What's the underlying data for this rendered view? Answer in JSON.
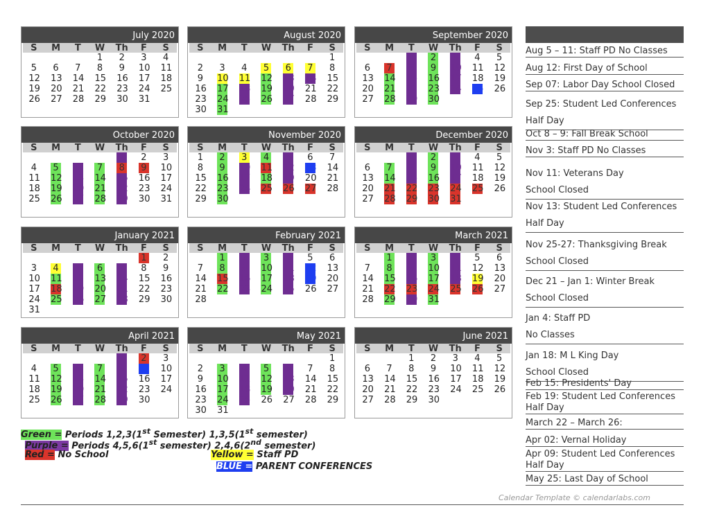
{
  "weekday_labels": [
    "S",
    "M",
    "T",
    "W",
    "Th",
    "F",
    "S"
  ],
  "months": [
    {
      "title": "July 2020",
      "start": 3,
      "days": 31,
      "marks": {}
    },
    {
      "title": "August 2020",
      "start": 6,
      "days": 31,
      "marks": {
        "5": "yellow",
        "6": "yellow",
        "7": "yellow",
        "10": "yellow",
        "11": "yellow",
        "12": "green",
        "13": "purple",
        "14": "purple",
        "17": "green",
        "18": "purple",
        "19": "green",
        "20": "purple",
        "24": "green",
        "25": "purple",
        "26": "green",
        "27": "purple",
        "31": "green"
      }
    },
    {
      "title": "September 2020",
      "start": 2,
      "days": 30,
      "marks": {
        "1": "purple",
        "2": "green",
        "3": "purple",
        "7": "red",
        "8": "purple",
        "9": "green",
        "10": "purple",
        "14": "green",
        "15": "purple",
        "16": "green",
        "17": "purple",
        "21": "green",
        "22": "purple",
        "23": "green",
        "24": "purple",
        "25": "blue",
        "28": "green",
        "29": "purple",
        "30": "green"
      }
    },
    {
      "title": "October 2020",
      "start": 4,
      "days": 31,
      "marks": {
        "1": "purple",
        "5": "green",
        "6": "purple",
        "7": "green",
        "8": "red",
        "9": "red",
        "12": "green",
        "13": "purple",
        "14": "green",
        "15": "purple",
        "19": "green",
        "20": "purple",
        "21": "green",
        "22": "purple",
        "26": "green",
        "27": "purple",
        "28": "green",
        "29": "purple"
      }
    },
    {
      "title": "November 2020",
      "start": 0,
      "days": 30,
      "marks": {
        "2": "green",
        "3": "yellow",
        "4": "green",
        "5": "purple",
        "9": "green",
        "10": "purple",
        "11": "red",
        "12": "purple",
        "13": "blue",
        "16": "green",
        "17": "purple",
        "18": "green",
        "19": "purple",
        "23": "green",
        "24": "purple",
        "25": "red",
        "26": "red",
        "27": "red",
        "30": "green"
      }
    },
    {
      "title": "December 2020",
      "start": 2,
      "days": 31,
      "marks": {
        "1": "purple",
        "2": "green",
        "3": "purple",
        "7": "green",
        "8": "purple",
        "9": "green",
        "10": "purple",
        "14": "green",
        "15": "purple",
        "16": "green",
        "17": "purple",
        "21": "red",
        "22": "red",
        "23": "red",
        "24": "red",
        "25": "red",
        "28": "red",
        "29": "red",
        "30": "red",
        "31": "red"
      }
    },
    {
      "title": "January 2021",
      "start": 5,
      "days": 31,
      "marks": {
        "1": "red",
        "4": "yellow",
        "5": "purple",
        "6": "green",
        "7": "purple",
        "11": "green",
        "12": "purple",
        "13": "green",
        "14": "purple",
        "18": "red",
        "19": "purple",
        "20": "green",
        "21": "purple",
        "25": "green",
        "26": "purple",
        "27": "green",
        "28": "purple"
      }
    },
    {
      "title": "February 2021",
      "start": 1,
      "days": 28,
      "marks": {
        "1": "green",
        "2": "purple",
        "3": "green",
        "4": "purple",
        "8": "green",
        "9": "purple",
        "10": "green",
        "11": "purple",
        "12": "blue",
        "15": "red",
        "16": "purple",
        "17": "green",
        "18": "purple",
        "19": "blue",
        "22": "green",
        "23": "purple",
        "24": "green",
        "25": "purple"
      }
    },
    {
      "title": "March 2021",
      "start": 1,
      "days": 31,
      "marks": {
        "1": "green",
        "2": "purple",
        "3": "green",
        "4": "purple",
        "8": "green",
        "9": "purple",
        "10": "green",
        "11": "purple",
        "15": "green",
        "16": "purple",
        "17": "green",
        "18": "purple",
        "19": "yellow",
        "22": "red",
        "23": "red",
        "24": "red",
        "25": "red",
        "26": "red",
        "29": "green",
        "30": "purple",
        "31": "green"
      }
    },
    {
      "title": "April 2021",
      "start": 4,
      "days": 30,
      "marks": {
        "1": "purple",
        "2": "red",
        "5": "green",
        "6": "purple",
        "7": "green",
        "8": "purple",
        "9": "blue",
        "12": "green",
        "13": "purple",
        "14": "green",
        "15": "purple",
        "19": "green",
        "20": "purple",
        "21": "green",
        "22": "purple",
        "26": "green",
        "27": "purple",
        "28": "green",
        "29": "purple"
      }
    },
    {
      "title": "May 2021",
      "start": 6,
      "days": 31,
      "marks": {
        "3": "green",
        "4": "purple",
        "5": "green",
        "6": "purple",
        "10": "green",
        "11": "purple",
        "12": "green",
        "13": "purple",
        "17": "green",
        "18": "purple",
        "19": "green",
        "20": "purple",
        "24": "green",
        "25": "purple"
      }
    },
    {
      "title": "June 2021",
      "start": 2,
      "days": 30,
      "marks": {}
    }
  ],
  "events": [
    {
      "lines": [
        "Aug 5 – 11: Staff PD No Classes"
      ]
    },
    {
      "lines": [
        "Aug 12: First Day of School"
      ]
    },
    {
      "lines": [
        "Sep 07: Labor Day School Closed"
      ]
    },
    {
      "lines": [
        "Sep 25: Student Led Conferences",
        "Half Day"
      ]
    },
    {
      "lines": [
        "Oct 8 – 9: Fall Break School"
      ]
    },
    {
      "lines": [
        "Nov 3: Staff PD No Classes"
      ]
    },
    {
      "lines": [
        "Nov 11: Veterans Day",
        "School Closed"
      ]
    },
    {
      "lines": [
        "Nov 13: Student Led Conferences",
        "Half Day"
      ]
    },
    {
      "lines": [
        "Nov 25-27: Thanksgiving Break",
        "School Closed"
      ]
    },
    {
      "lines": [
        "Dec 21 – Jan 1: Winter Break",
        "School Closed"
      ]
    },
    {
      "lines": [
        "Jan 4: Staff PD",
        "No Classes"
      ]
    },
    {
      "lines": [
        "Jan 18: M L King Day",
        "School Closed"
      ]
    },
    {
      "lines": [
        "Feb 15: Presidents' Day"
      ]
    },
    {
      "lines": [
        "Feb 19: Student Led Conferences",
        "Half Day"
      ]
    },
    {
      "lines": [
        "March 22 – March 26:"
      ]
    },
    {
      "lines": [
        "Apr 02: Vernal Holiday"
      ]
    },
    {
      "lines": [
        "Apr 09: Student Led Conferences",
        "Half Day"
      ]
    },
    {
      "lines": [
        "May 25: Last Day of School"
      ]
    }
  ],
  "legend": {
    "green_key": "Green =",
    "green_text": "Periods 1,2,3(1",
    "green_sup1": "st",
    "green_mid": " Semester) 1,3,5(1",
    "green_sup2": "st",
    "green_end": " semester)",
    "purple_key": "Purple =",
    "purple_text": "Periods 4,5,6(1",
    "purple_sup1": "st",
    "purple_mid": " semester) 2,4,6(2",
    "purple_sup2": "nd",
    "purple_end": " semester)",
    "red_key": "Red =",
    "red_text": "No School",
    "yellow_key": "Yellow =",
    "yellow_text": "Staff PD",
    "blue_key": "BLUE =",
    "blue_text": "PARENT CONFERENCES"
  },
  "credit": "Calendar Template © calendarlabs.com",
  "colors": {
    "green": "#6ee35a",
    "purple": "#6e2d91",
    "red": "#d9342b",
    "yellow": "#ffff33",
    "blue": "#1e3ef0",
    "header": "#474747"
  }
}
